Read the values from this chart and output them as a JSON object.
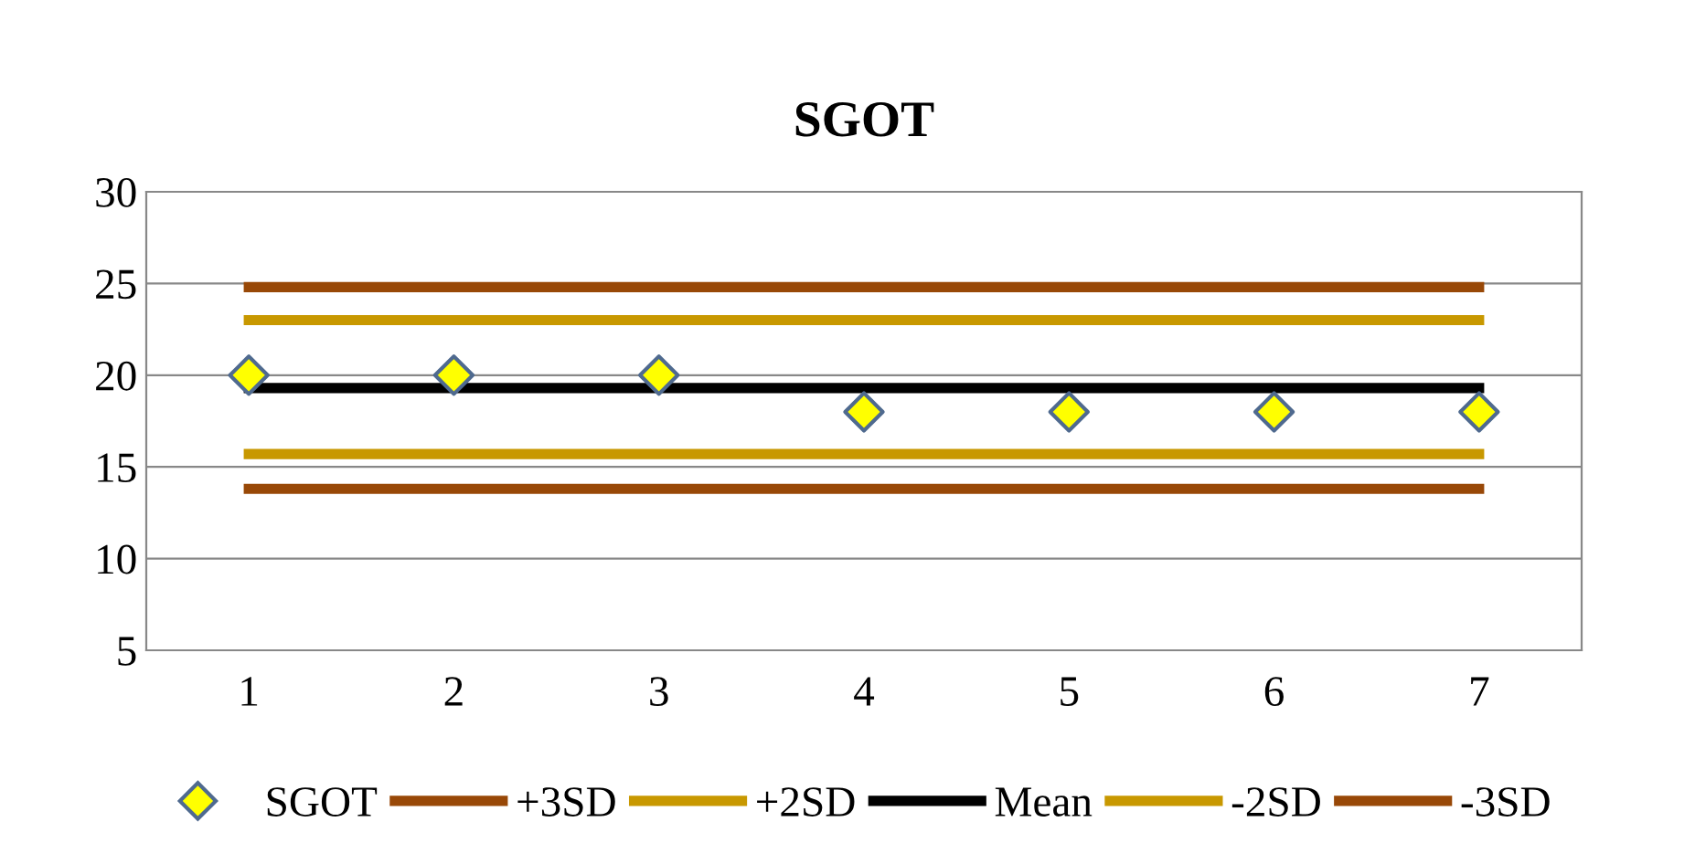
{
  "chart_data": {
    "type": "line",
    "title": "SGOT",
    "categories": [
      "1",
      "2",
      "3",
      "4",
      "5",
      "6",
      "7"
    ],
    "series": [
      {
        "name": "SGOT",
        "type": "scatter",
        "marker": "diamond",
        "color": "#ffff00",
        "values": [
          20,
          20,
          20,
          18,
          18,
          18,
          18
        ]
      },
      {
        "name": "+3SD",
        "color": "#984807",
        "values": [
          24.8,
          24.8,
          24.8,
          24.8,
          24.8,
          24.8,
          24.8
        ]
      },
      {
        "name": "+2SD",
        "color": "#c89800",
        "values": [
          23.0,
          23.0,
          23.0,
          23.0,
          23.0,
          23.0,
          23.0
        ]
      },
      {
        "name": "Mean",
        "color": "#000000",
        "values": [
          19.3,
          19.3,
          19.3,
          19.3,
          19.3,
          19.3,
          19.3
        ]
      },
      {
        "name": "-2SD",
        "color": "#c89800",
        "values": [
          15.7,
          15.7,
          15.7,
          15.7,
          15.7,
          15.7,
          15.7
        ]
      },
      {
        "name": "-3SD",
        "color": "#984807",
        "values": [
          13.8,
          13.8,
          13.8,
          13.8,
          13.8,
          13.8,
          13.8
        ]
      }
    ],
    "ylim": [
      5,
      30
    ],
    "yticks": [
      5,
      10,
      15,
      20,
      25,
      30
    ],
    "grid": "y",
    "legend": "bottom"
  }
}
